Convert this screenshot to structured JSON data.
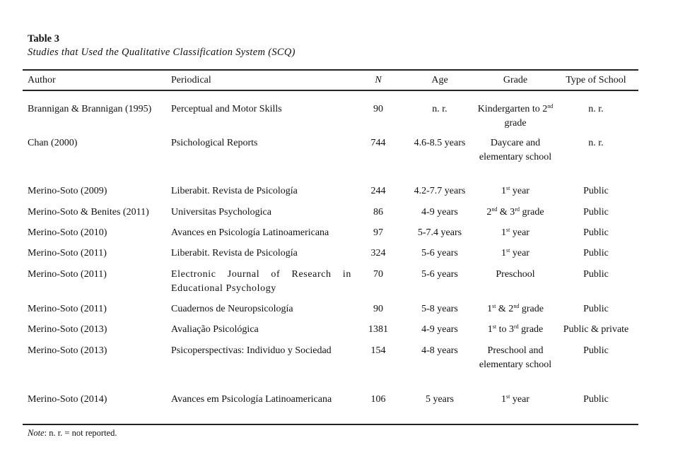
{
  "table": {
    "label": "Table 3",
    "title": "Studies that Used the Qualitative Classification System (SCQ)",
    "headers": {
      "author": "Author",
      "periodical": "Periodical",
      "n": "N",
      "age": "Age",
      "grade": "Grade",
      "type": "Type of School"
    },
    "rows": [
      {
        "author": "Brannigan & Brannigan (1995)",
        "periodical": "Perceptual and Motor Skills",
        "n": "90",
        "age": "n. r.",
        "grade": [
          [
            "Kindergarten to 2",
            ""
          ],
          [
            "nd",
            "sup"
          ],
          [
            " grade",
            ""
          ]
        ],
        "type": "n. r."
      },
      {
        "author": "Chan (2000)",
        "periodical": "Psichological Reports",
        "n": "744",
        "age": "4.6-8.5 years",
        "grade": [
          [
            "Daycare and elementary school",
            ""
          ]
        ],
        "type": "n. r."
      },
      {
        "author": "Merino-Soto (2009)",
        "periodical": "Liberabit. Revista de Psicología",
        "n": "244",
        "age": "4.2-7.7 years",
        "grade": [
          [
            "1",
            ""
          ],
          [
            "st",
            "sup"
          ],
          [
            " year",
            ""
          ]
        ],
        "type": "Public"
      },
      {
        "author": "Merino-Soto & Benites (2011)",
        "periodical": "Universitas Psychologica",
        "n": "86",
        "age": "4-9 years",
        "grade": [
          [
            "2",
            ""
          ],
          [
            "nd",
            "sup"
          ],
          [
            " & 3",
            ""
          ],
          [
            "rd",
            "sup"
          ],
          [
            " grade",
            ""
          ]
        ],
        "type": "Public"
      },
      {
        "author": "Merino-Soto (2010)",
        "periodical": "Avances en Psicología Latinoamericana",
        "n": "97",
        "age": "5-7.4 years",
        "grade": [
          [
            "1",
            ""
          ],
          [
            "st",
            "sup"
          ],
          [
            " year",
            ""
          ]
        ],
        "type": "Public"
      },
      {
        "author": "Merino-Soto (2011)",
        "periodical": "Liberabit. Revista de Psicología",
        "n": "324",
        "age": "5-6 years",
        "grade": [
          [
            "1",
            ""
          ],
          [
            "st",
            "sup"
          ],
          [
            " year",
            ""
          ]
        ],
        "type": "Public"
      },
      {
        "author": "Merino-Soto (2011)",
        "periodical": "Electronic Journal of Research in Educational Psychology",
        "n": "70",
        "age": "5-6 years",
        "grade": [
          [
            "Preschool",
            ""
          ]
        ],
        "type": "Public"
      },
      {
        "author": "Merino-Soto (2011)",
        "periodical": "Cuadernos de Neuropsicología",
        "n": "90",
        "age": "5-8 years",
        "grade": [
          [
            "1",
            ""
          ],
          [
            "st",
            "sup"
          ],
          [
            " & 2",
            ""
          ],
          [
            "nd",
            "sup"
          ],
          [
            " grade",
            ""
          ]
        ],
        "type": "Public"
      },
      {
        "author": "Merino-Soto (2013)",
        "periodical": "Avaliação Psicológica",
        "n": "1381",
        "age": "4-9 years",
        "grade": [
          [
            "1",
            ""
          ],
          [
            "st",
            "sup"
          ],
          [
            " to 3",
            ""
          ],
          [
            "rd",
            "sup"
          ],
          [
            " grade",
            ""
          ]
        ],
        "type": "Public & private"
      },
      {
        "author": "Merino-Soto (2013)",
        "periodical": "Psicoperspectivas: Individuo y Sociedad",
        "n": "154",
        "age": "4-8 years",
        "grade": [
          [
            "Preschool and elementary school",
            ""
          ]
        ],
        "type": "Public"
      },
      {
        "author": "Merino-Soto (2014)",
        "periodical": "Avances em Psicología Latinoamericana",
        "n": "106",
        "age": "5 years",
        "grade": [
          [
            "1",
            ""
          ],
          [
            "st",
            "sup"
          ],
          [
            " year",
            ""
          ]
        ],
        "type": "Public"
      }
    ],
    "note_label": "Note",
    "note_text": ": n. r. = not reported."
  }
}
